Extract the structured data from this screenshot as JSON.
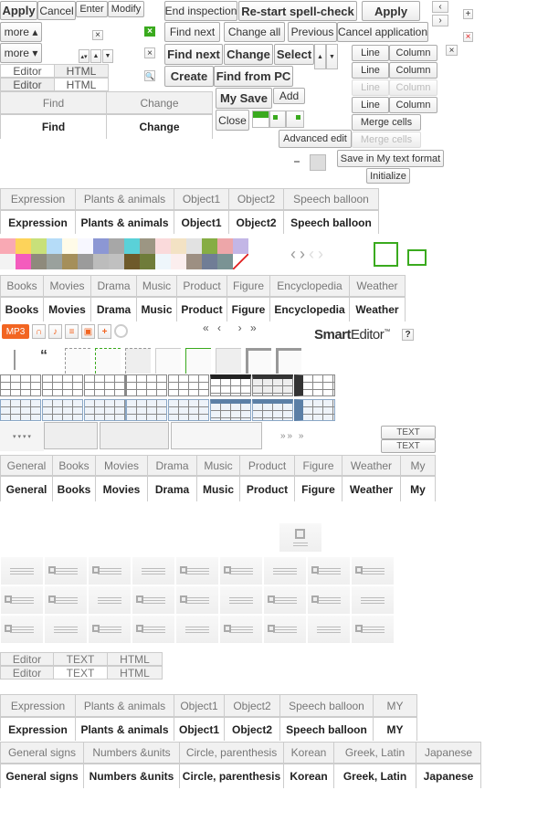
{
  "top_left": {
    "apply": "Apply",
    "cancel": "Cancel",
    "enter": "Enter",
    "modify": "Modify",
    "more_up": "more ▴",
    "more_down": "more ▾"
  },
  "mode_tabs_1": {
    "editor": "Editor",
    "html": "HTML"
  },
  "find_tabs": {
    "find": "Find",
    "change": "Change"
  },
  "spell": {
    "end": "End inspection",
    "restart": "Re-start spell-check",
    "apply": "Apply"
  },
  "find_row": {
    "find_next": "Find next",
    "change_all": "Change all",
    "previous": "Previous",
    "cancel_application": "Cancel application"
  },
  "find_row_bold": {
    "find_next": "Find next",
    "change": "Change",
    "select": "Select"
  },
  "create_row": {
    "create": "Create",
    "find_from_pc": "Find from PC"
  },
  "mysave": {
    "my_save": "My Save",
    "add": "Add",
    "close": "Close"
  },
  "table_edit": {
    "line": "Line",
    "column": "Column",
    "merge_cells": "Merge cells"
  },
  "misc": {
    "advanced_edit": "Advanced edit",
    "save_my_format": "Save in My text format",
    "initialize": "Initialize"
  },
  "emoticon_tabs": [
    "Expression",
    "Plants & animals",
    "Object1",
    "Object2",
    "Speech balloon"
  ],
  "media_tabs": [
    "Books",
    "Movies",
    "Drama",
    "Music",
    "Product",
    "Figure",
    "Encyclopedia",
    "Weather"
  ],
  "media_icons": {
    "mp3": "MP3",
    "quote": "“"
  },
  "logo": {
    "brand": "Smart",
    "product": "Editor",
    "tm": "™",
    "help": "?"
  },
  "text_toggle": [
    "TEXT",
    "TEXT"
  ],
  "category_tabs": [
    "General",
    "Books",
    "Movies",
    "Drama",
    "Music",
    "Product",
    "Figure",
    "Weather",
    "My"
  ],
  "mode_tabs_2": {
    "editor": "Editor",
    "text": "TEXT",
    "html": "HTML"
  },
  "emoticon_tabs_2": [
    "Expression",
    "Plants & animals",
    "Object1",
    "Object2",
    "Speech balloon",
    "MY"
  ],
  "symbol_tabs": [
    "General signs",
    "Numbers &units",
    "Circle, parenthesis",
    "Korean",
    "Greek, Latin",
    "Japanese"
  ],
  "colors": {
    "accent_green": "#3aaa1e",
    "mp3_orange": "#f26522",
    "table_blue": "#5b7fa6",
    "close_red": "#e02020"
  }
}
